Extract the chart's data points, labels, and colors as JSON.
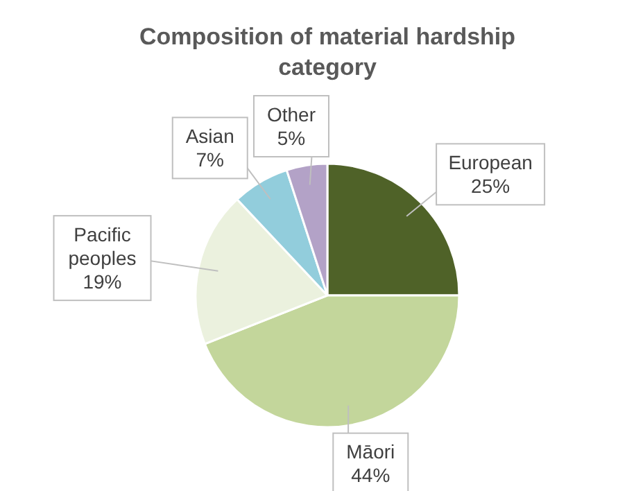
{
  "chart_data": {
    "type": "pie",
    "title": "Composition of material hardship category",
    "categories": [
      "European",
      "Māori",
      "Pacific peoples",
      "Asian",
      "Other"
    ],
    "values": [
      25,
      44,
      19,
      7,
      5
    ],
    "value_labels": [
      "25%",
      "44%",
      "19%",
      "7%",
      "5%"
    ],
    "colors": [
      "#4f6228",
      "#c3d69b",
      "#ebf1de",
      "#92cddc",
      "#b3a2c7"
    ]
  }
}
